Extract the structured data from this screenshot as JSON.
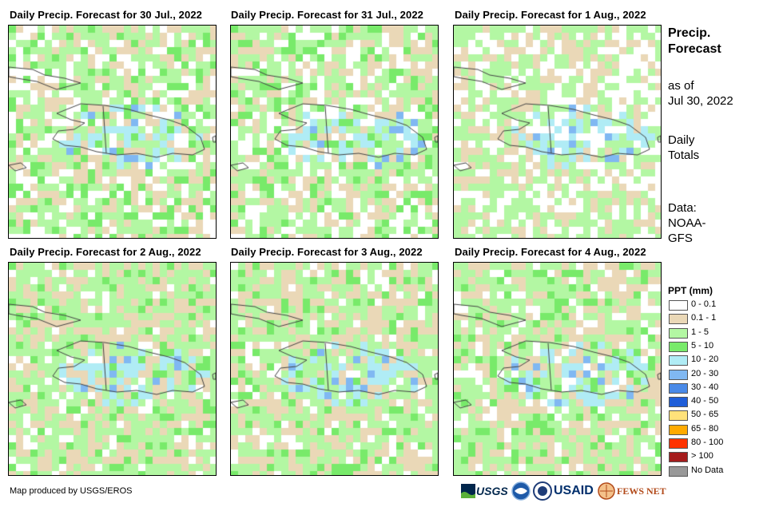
{
  "panels": [
    {
      "title": "Daily Precip. Forecast for 30 Jul., 2022",
      "seed": 11
    },
    {
      "title": "Daily Precip. Forecast for 31 Jul., 2022",
      "seed": 23
    },
    {
      "title": "Daily Precip. Forecast for 1 Aug., 2022",
      "seed": 37
    },
    {
      "title": "Daily Precip. Forecast for 2 Aug., 2022",
      "seed": 41
    },
    {
      "title": "Daily Precip. Forecast for 3 Aug., 2022",
      "seed": 53
    },
    {
      "title": "Daily Precip. Forecast for 4 Aug., 2022",
      "seed": 67
    }
  ],
  "side": {
    "title_line1": "Precip.",
    "title_line2": "Forecast",
    "as_of_line1": "as of",
    "as_of_line2": "Jul 30, 2022",
    "totals_line1": "Daily",
    "totals_line2": "Totals",
    "data_line1": "Data:",
    "data_line2": "NOAA-",
    "data_line3": "GFS"
  },
  "legend": {
    "title": "PPT (mm)",
    "items": [
      {
        "label": "0 - 0.1",
        "color": "#ffffff"
      },
      {
        "label": "0.1 - 1",
        "color": "#ead8b7"
      },
      {
        "label": "1 - 5",
        "color": "#b3f7a3"
      },
      {
        "label": "5 - 10",
        "color": "#78ea6a"
      },
      {
        "label": "10 - 20",
        "color": "#b0ecf5"
      },
      {
        "label": "20 - 30",
        "color": "#80b8f2"
      },
      {
        "label": "30 - 40",
        "color": "#4a8ae8"
      },
      {
        "label": "40 - 50",
        "color": "#1f5ed8"
      },
      {
        "label": "50 - 65",
        "color": "#ffe27a"
      },
      {
        "label": "65 - 80",
        "color": "#ffaa00"
      },
      {
        "label": "80 - 100",
        "color": "#ff3300"
      },
      {
        "label": "> 100",
        "color": "#a51c1c"
      },
      {
        "label": "No Data",
        "color": "#999999"
      }
    ]
  },
  "credit": "Map produced by USGS/EROS",
  "logos": {
    "usgs": "USGS",
    "usaid": "USAID",
    "fewsnet": "FEWS NET"
  }
}
